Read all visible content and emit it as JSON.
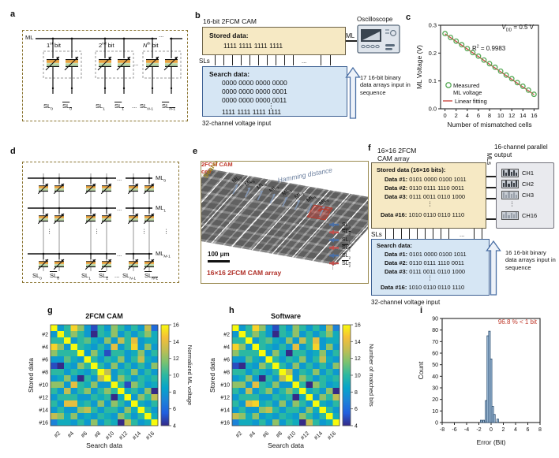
{
  "panel_labels": {
    "a": "a",
    "b": "b",
    "c": "c",
    "d": "d",
    "e": "e",
    "f": "f",
    "g": "g",
    "h": "h",
    "i": "i"
  },
  "a": {
    "ml": "ML",
    "bits": [
      "1^{st} bit",
      "2^{nd} bit",
      "*N*^{th} bit"
    ],
    "dots": "...",
    "sl": [
      "SL_{0}",
      "!SL_{0}",
      "SL_{1}",
      "!SL_{1}",
      "...",
      "SL_{*N*-1}",
      "!SL_{*N*-1}"
    ]
  },
  "b": {
    "title": "16-bit 2FCM CAM",
    "stored_title": "Stored data:",
    "stored_value": "1111 1111 1111 1111",
    "sls": "SLs",
    "dots": "...",
    "search_title": "Search data:",
    "search_lines": [
      "0000 0000 0000 0000",
      "0000 0000 0000 0001",
      "0000 0000 0000 0011"
    ],
    "vdots": "⋮",
    "search_last": "1111 1111 1111 1111",
    "input_caption": "32-channel voltage input",
    "ml": "ML",
    "oscilloscope": "Oscilloscope",
    "arrow_note": "17 16-bit binary data arrays input in sequence"
  },
  "d": {
    "ml": [
      "ML_{0}",
      "ML_{1}",
      "ML_{*M*-1}"
    ],
    "dots": "...",
    "vdots": "⋮",
    "sl": [
      "SL_{0}",
      "!SL_{0}",
      "SL_{1}",
      "!SL_{1}",
      "...",
      "SL_{*N*-1}",
      "!SL_{*N*-1}"
    ]
  },
  "e": {
    "hamming": "Hamming distance",
    "ml_labels": [
      "ML_{7}",
      "ML_{6}",
      "ML_{5}",
      "ML_{4}",
      "ML_{3}",
      "ML_{2}",
      "ML_{1}",
      "ML_{0}"
    ],
    "dots": "...",
    "cell_label": "2FCM CAM cell",
    "sl_labels": [
      "SL_{0}",
      "!SL_{0}",
      "SL_{1}",
      "!SL_{1}",
      "SL_{2}",
      "!SL_{2}"
    ],
    "vdots": "⋮",
    "search_data": "Search data",
    "scalebar": "100 μm",
    "caption": "16×16 2FCM CAM array"
  },
  "f": {
    "title_line1": "16×16 2FCM",
    "title_line2": "CAM array",
    "stored_title": "Stored data (16×16 bits):",
    "stored_rows": [
      {
        "k": "Data #1:",
        "v": "0101 0000 0100 1011"
      },
      {
        "k": "Data #2:",
        "v": "0110 0111 1110 0011"
      },
      {
        "k": "Data #3:",
        "v": "0111 0011 0110 1000"
      }
    ],
    "vdots": "⋮",
    "stored_last": {
      "k": "Data #16:",
      "v": "1010 0110 0110 1110"
    },
    "sls": "SLs",
    "dots": "...",
    "search_title": "Search data:",
    "search_rows": [
      {
        "k": "Data #1:",
        "v": "0101 0000 0100 1011"
      },
      {
        "k": "Data #2:",
        "v": "0110 0111 1110 0011"
      },
      {
        "k": "Data #3:",
        "v": "0111 0011 0110 1000"
      }
    ],
    "search_last": {
      "k": "Data #16:",
      "v": "1010 0110 0110 1110"
    },
    "input_caption": "32-channel voltage input",
    "mls": "MLs",
    "output_label": "16-channel parallel output",
    "channels": [
      "CH1",
      "CH2",
      "CH3",
      "CH16"
    ],
    "ch_vdots": "⋮",
    "arrow_note": "16 16-bit binary data arrays input in sequence"
  },
  "chart_data": [
    {
      "id": "c",
      "type": "scatter",
      "x": [
        0,
        1,
        2,
        3,
        4,
        5,
        6,
        7,
        8,
        9,
        10,
        11,
        12,
        13,
        14,
        15,
        16
      ],
      "y": [
        0.27,
        0.256,
        0.243,
        0.23,
        0.216,
        0.202,
        0.189,
        0.175,
        0.162,
        0.149,
        0.135,
        0.121,
        0.108,
        0.094,
        0.081,
        0.067,
        0.052
      ],
      "fit": {
        "x0": 0,
        "y0": 0.269,
        "x1": 16,
        "y1": 0.051
      },
      "xlabel": "Number of mismatched cells",
      "ylabel": "ML Voltage (V)",
      "xlim": [
        -0.8,
        16.8
      ],
      "ylim": [
        0,
        0.3
      ],
      "xticks": [
        0,
        2,
        4,
        6,
        8,
        10,
        12,
        14,
        16
      ],
      "yticks": [
        0.0,
        0.1,
        0.2,
        0.3
      ],
      "annotations": [
        "*V*_{DD} = 0.5 V",
        "R^{2} = 0.9983"
      ],
      "legend": [
        {
          "marker": "circle",
          "color": "#55a855",
          "lines": [
            "Measured",
            "ML voltage"
          ]
        },
        {
          "marker": "line",
          "color": "#cb4a42",
          "lines": [
            "Linear fitting"
          ]
        }
      ]
    },
    {
      "id": "g",
      "type": "heatmap",
      "title": "2FCM CAM",
      "xlabel": "Search data",
      "ylabel": "Stored data",
      "ticks": [
        "#2",
        "#4",
        "#6",
        "#8",
        "#10",
        "#12",
        "#14",
        "#16"
      ],
      "colorbar_label": "Normalized ML voltage",
      "vmin": 4,
      "vmax": 16,
      "colorbar_ticks": [
        16,
        14,
        12,
        10,
        8,
        6,
        4
      ],
      "matrix": [
        [
          16,
          8,
          10,
          15,
          12,
          8,
          5,
          10,
          8,
          12,
          10,
          8,
          10,
          8,
          13,
          6
        ],
        [
          8,
          16,
          10,
          12,
          10,
          8,
          4,
          10,
          9,
          12,
          8,
          10,
          8,
          10,
          12,
          9
        ],
        [
          10,
          10,
          16,
          8,
          10,
          11,
          9,
          8,
          12,
          8,
          13,
          10,
          14,
          8,
          9,
          9
        ],
        [
          15,
          12,
          8,
          16,
          10,
          9,
          8,
          10,
          8,
          14,
          8,
          10,
          15,
          8,
          12,
          8
        ],
        [
          12,
          10,
          10,
          10,
          16,
          8,
          12,
          9,
          5,
          10,
          10,
          8,
          9,
          12,
          8,
          10
        ],
        [
          8,
          8,
          11,
          9,
          8,
          16,
          10,
          8,
          10,
          9,
          12,
          8,
          10,
          13,
          9,
          8
        ],
        [
          5,
          4,
          9,
          8,
          12,
          10,
          16,
          10,
          8,
          12,
          8,
          10,
          8,
          10,
          8,
          12
        ],
        [
          10,
          10,
          8,
          10,
          9,
          8,
          10,
          16,
          13,
          8,
          10,
          9,
          12,
          8,
          10,
          8
        ],
        [
          8,
          9,
          12,
          8,
          4,
          10,
          8,
          13,
          16,
          8,
          12,
          10,
          8,
          10,
          9,
          10
        ],
        [
          12,
          12,
          8,
          14,
          10,
          9,
          12,
          8,
          8,
          16,
          10,
          5,
          12,
          10,
          8,
          9
        ],
        [
          10,
          8,
          13,
          8,
          10,
          12,
          8,
          10,
          12,
          10,
          16,
          9,
          10,
          8,
          12,
          4
        ],
        [
          8,
          10,
          10,
          10,
          8,
          8,
          10,
          9,
          10,
          4,
          9,
          16,
          8,
          12,
          10,
          13
        ],
        [
          10,
          8,
          14,
          14,
          9,
          10,
          8,
          12,
          8,
          12,
          10,
          8,
          16,
          9,
          8,
          10
        ],
        [
          8,
          10,
          8,
          8,
          12,
          13,
          10,
          8,
          10,
          10,
          8,
          12,
          9,
          16,
          10,
          8
        ],
        [
          13,
          12,
          9,
          12,
          8,
          9,
          8,
          10,
          9,
          8,
          12,
          10,
          8,
          10,
          16,
          9
        ],
        [
          7,
          9,
          9,
          8,
          10,
          8,
          12,
          8,
          10,
          9,
          4,
          13,
          10,
          8,
          9,
          16
        ]
      ]
    },
    {
      "id": "h",
      "type": "heatmap",
      "title": "Software",
      "xlabel": "Search data",
      "ylabel": "Stored data",
      "ticks": [
        "#2",
        "#4",
        "#6",
        "#8",
        "#10",
        "#12",
        "#14",
        "#16"
      ],
      "colorbar_label": "Number of matched bits",
      "vmin": 4,
      "vmax": 16,
      "colorbar_ticks": [
        16,
        14,
        12,
        10,
        8,
        6,
        4
      ],
      "matrix": [
        [
          16,
          8,
          10,
          15,
          12,
          8,
          5,
          10,
          8,
          12,
          10,
          8,
          10,
          8,
          13,
          7
        ],
        [
          8,
          16,
          10,
          12,
          10,
          8,
          4,
          10,
          9,
          12,
          8,
          10,
          8,
          10,
          12,
          9
        ],
        [
          10,
          10,
          16,
          8,
          10,
          11,
          9,
          8,
          12,
          8,
          13,
          10,
          14,
          8,
          9,
          9
        ],
        [
          15,
          12,
          8,
          16,
          10,
          9,
          8,
          10,
          8,
          14,
          8,
          10,
          15,
          8,
          12,
          8
        ],
        [
          12,
          10,
          10,
          10,
          16,
          8,
          12,
          9,
          4,
          10,
          10,
          8,
          9,
          12,
          8,
          10
        ],
        [
          8,
          8,
          11,
          9,
          8,
          16,
          10,
          8,
          10,
          9,
          12,
          8,
          10,
          13,
          9,
          8
        ],
        [
          5,
          4,
          9,
          8,
          12,
          10,
          16,
          10,
          8,
          12,
          8,
          10,
          8,
          10,
          8,
          12
        ],
        [
          10,
          10,
          8,
          10,
          9,
          8,
          10,
          16,
          13,
          8,
          10,
          9,
          12,
          8,
          10,
          8
        ],
        [
          8,
          9,
          12,
          8,
          4,
          10,
          8,
          13,
          16,
          8,
          12,
          10,
          8,
          10,
          9,
          10
        ],
        [
          12,
          12,
          8,
          14,
          10,
          9,
          12,
          8,
          8,
          16,
          10,
          4,
          12,
          10,
          8,
          9
        ],
        [
          10,
          8,
          13,
          8,
          10,
          12,
          8,
          10,
          12,
          10,
          16,
          9,
          10,
          8,
          12,
          4
        ],
        [
          8,
          10,
          10,
          10,
          8,
          8,
          10,
          9,
          10,
          4,
          9,
          16,
          8,
          12,
          10,
          13
        ],
        [
          10,
          8,
          14,
          15,
          9,
          10,
          8,
          12,
          8,
          12,
          10,
          8,
          16,
          9,
          8,
          10
        ],
        [
          8,
          10,
          8,
          8,
          12,
          13,
          10,
          8,
          10,
          10,
          8,
          12,
          9,
          16,
          10,
          8
        ],
        [
          13,
          12,
          9,
          12,
          8,
          9,
          8,
          10,
          9,
          8,
          12,
          10,
          8,
          10,
          16,
          9
        ],
        [
          7,
          9,
          9,
          8,
          10,
          8,
          12,
          8,
          10,
          9,
          4,
          13,
          10,
          8,
          9,
          16
        ]
      ]
    },
    {
      "id": "i",
      "type": "bar",
      "xlabel": "Error (Bit)",
      "ylabel": "Count",
      "xlim": [
        -8,
        8
      ],
      "ylim": [
        0,
        90
      ],
      "xticks": [
        -8,
        -6,
        -4,
        -2,
        0,
        2,
        4,
        6,
        8
      ],
      "yticks": [
        0,
        10,
        20,
        30,
        40,
        50,
        60,
        70,
        80,
        90
      ],
      "annotation": "96.8 % < 1 bit",
      "bar_color": "#a9c6e2",
      "bar_edge": "#2c4d6e",
      "bin_width": 0.27,
      "bars": [
        {
          "x": -1.62,
          "count": 2
        },
        {
          "x": -1.22,
          "count": 2
        },
        {
          "x": -0.81,
          "count": 19
        },
        {
          "x": -0.54,
          "count": 75
        },
        {
          "x": -0.27,
          "count": 79
        },
        {
          "x": 0.0,
          "count": 55
        },
        {
          "x": 0.27,
          "count": 14
        },
        {
          "x": 0.54,
          "count": 7
        },
        {
          "x": 1.08,
          "count": 3
        }
      ]
    }
  ]
}
